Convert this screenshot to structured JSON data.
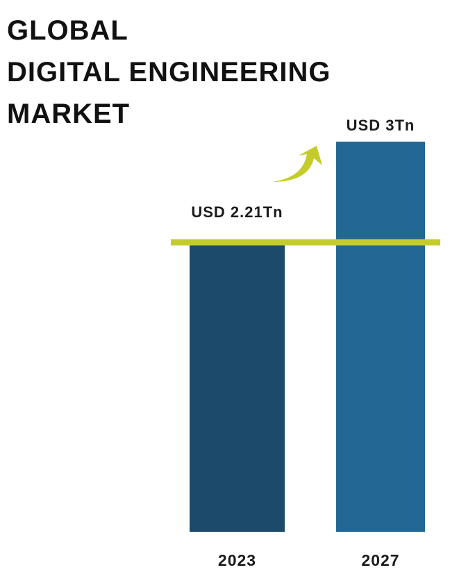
{
  "title_lines": [
    "GLOBAL",
    "DIGITAL ENGINEERING",
    "MARKET"
  ],
  "colors": {
    "bar_2023": "#1b4a6b",
    "bar_2027": "#236894",
    "accent": "#c4cc2c",
    "text": "#111111"
  },
  "icons": {
    "growth_arrow": "curved-up-right-arrow"
  },
  "chart_data": {
    "type": "bar",
    "categories": [
      "2023",
      "2027"
    ],
    "values": [
      2.21,
      3
    ],
    "value_labels": [
      "USD 2.21Tn",
      "USD 3Tn"
    ],
    "unit": "USD Tn",
    "reference_line_value": 2.21,
    "ylim": [
      0,
      3
    ],
    "grid": false,
    "legend": "none"
  }
}
